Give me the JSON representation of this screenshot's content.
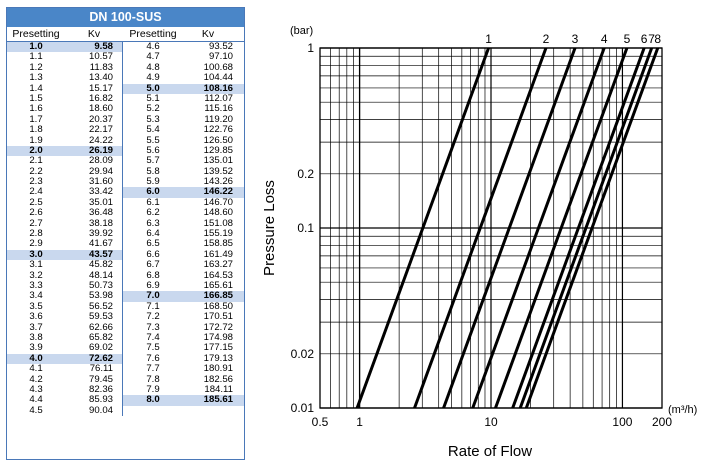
{
  "table": {
    "title": "DN 100-SUS",
    "headers": [
      "Presetting",
      "Kv",
      "Presetting",
      "Kv"
    ],
    "left_rows": [
      [
        "1.0",
        "9.58",
        true
      ],
      [
        "1.1",
        "10.57",
        false
      ],
      [
        "1.2",
        "11.83",
        false
      ],
      [
        "1.3",
        "13.40",
        false
      ],
      [
        "1.4",
        "15.17",
        false
      ],
      [
        "1.5",
        "16.82",
        false
      ],
      [
        "1.6",
        "18.60",
        false
      ],
      [
        "1.7",
        "20.37",
        false
      ],
      [
        "1.8",
        "22.17",
        false
      ],
      [
        "1.9",
        "24.22",
        false
      ],
      [
        "2.0",
        "26.19",
        true
      ],
      [
        "2.1",
        "28.09",
        false
      ],
      [
        "2.2",
        "29.94",
        false
      ],
      [
        "2.3",
        "31.60",
        false
      ],
      [
        "2.4",
        "33.42",
        false
      ],
      [
        "2.5",
        "35.01",
        false
      ],
      [
        "2.6",
        "36.48",
        false
      ],
      [
        "2.7",
        "38.18",
        false
      ],
      [
        "2.8",
        "39.92",
        false
      ],
      [
        "2.9",
        "41.67",
        false
      ],
      [
        "3.0",
        "43.57",
        true
      ],
      [
        "3.1",
        "45.82",
        false
      ],
      [
        "3.2",
        "48.14",
        false
      ],
      [
        "3.3",
        "50.73",
        false
      ],
      [
        "3.4",
        "53.98",
        false
      ],
      [
        "3.5",
        "56.52",
        false
      ],
      [
        "3.6",
        "59.53",
        false
      ],
      [
        "3.7",
        "62.66",
        false
      ],
      [
        "3.8",
        "65.82",
        false
      ],
      [
        "3.9",
        "69.02",
        false
      ],
      [
        "4.0",
        "72.62",
        true
      ],
      [
        "4.1",
        "76.11",
        false
      ],
      [
        "4.2",
        "79.45",
        false
      ],
      [
        "4.3",
        "82.36",
        false
      ],
      [
        "4.4",
        "85.93",
        false
      ],
      [
        "4.5",
        "90.04",
        false
      ]
    ],
    "right_rows": [
      [
        "4.6",
        "93.52",
        false
      ],
      [
        "4.7",
        "97.10",
        false
      ],
      [
        "4.8",
        "100.68",
        false
      ],
      [
        "4.9",
        "104.44",
        false
      ],
      [
        "5.0",
        "108.16",
        true
      ],
      [
        "5.1",
        "112.07",
        false
      ],
      [
        "5.2",
        "115.16",
        false
      ],
      [
        "5.3",
        "119.20",
        false
      ],
      [
        "5.4",
        "122.76",
        false
      ],
      [
        "5.5",
        "126.50",
        false
      ],
      [
        "5.6",
        "129.85",
        false
      ],
      [
        "5.7",
        "135.01",
        false
      ],
      [
        "5.8",
        "139.52",
        false
      ],
      [
        "5.9",
        "143.26",
        false
      ],
      [
        "6.0",
        "146.22",
        true
      ],
      [
        "6.1",
        "146.70",
        false
      ],
      [
        "6.2",
        "148.60",
        false
      ],
      [
        "6.3",
        "151.08",
        false
      ],
      [
        "6.4",
        "155.19",
        false
      ],
      [
        "6.5",
        "158.85",
        false
      ],
      [
        "6.6",
        "161.49",
        false
      ],
      [
        "6.7",
        "163.27",
        false
      ],
      [
        "6.8",
        "164.53",
        false
      ],
      [
        "6.9",
        "165.61",
        false
      ],
      [
        "7.0",
        "166.85",
        true
      ],
      [
        "7.1",
        "168.50",
        false
      ],
      [
        "7.2",
        "170.51",
        false
      ],
      [
        "7.3",
        "172.72",
        false
      ],
      [
        "7.4",
        "174.98",
        false
      ],
      [
        "7.5",
        "177.15",
        false
      ],
      [
        "7.6",
        "179.13",
        false
      ],
      [
        "7.7",
        "180.91",
        false
      ],
      [
        "7.8",
        "182.56",
        false
      ],
      [
        "7.9",
        "184.11",
        false
      ],
      [
        "8.0",
        "185.61",
        true
      ]
    ]
  },
  "chart_data": {
    "type": "line",
    "xscale": "log",
    "yscale": "log",
    "xlabel": "Rate of Flow",
    "ylabel": "Pressure Loss",
    "xunit": "(m³/h)",
    "yunit": "(bar)",
    "xlim": [
      0.5,
      200
    ],
    "ylim": [
      0.01,
      1
    ],
    "xticks": [
      0.5,
      1,
      10,
      100,
      200
    ],
    "xtick_labels": [
      "0.5",
      "1",
      "10",
      "100",
      "200"
    ],
    "yticks": [
      0.01,
      0.02,
      0.1,
      0.2,
      1
    ],
    "ytick_labels": [
      "0.01",
      "0.02",
      "0.1",
      "0.2",
      "1"
    ],
    "grid": true,
    "series": [
      {
        "name": "1",
        "x": [
          0.958,
          9.58
        ],
        "y": [
          0.01,
          1
        ]
      },
      {
        "name": "2",
        "x": [
          2.619,
          26.19
        ],
        "y": [
          0.01,
          1
        ]
      },
      {
        "name": "3",
        "x": [
          4.357,
          43.57
        ],
        "y": [
          0.01,
          1
        ]
      },
      {
        "name": "4",
        "x": [
          7.262,
          72.62
        ],
        "y": [
          0.01,
          1
        ]
      },
      {
        "name": "5",
        "x": [
          10.816,
          108.16
        ],
        "y": [
          0.01,
          1
        ]
      },
      {
        "name": "6",
        "x": [
          14.622,
          146.22
        ],
        "y": [
          0.01,
          1
        ]
      },
      {
        "name": "7",
        "x": [
          16.685,
          166.85
        ],
        "y": [
          0.01,
          1
        ]
      },
      {
        "name": "8",
        "x": [
          18.561,
          185.61
        ],
        "y": [
          0.01,
          1
        ]
      }
    ]
  }
}
